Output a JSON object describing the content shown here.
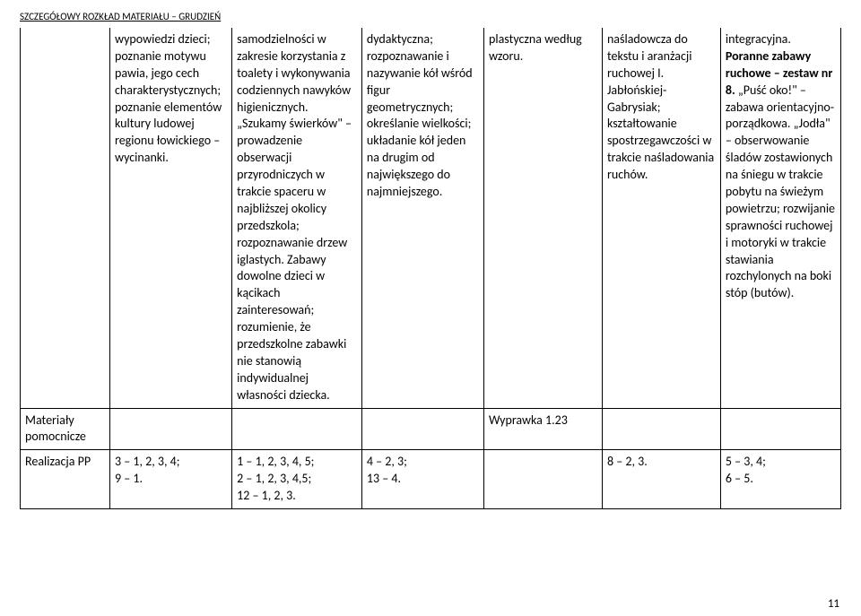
{
  "header": "SZCZEGÓŁOWY ROZKŁAD MATERIAŁU – GRUDZIEŃ",
  "row1": {
    "c0": "",
    "c1": "wypowiedzi dzieci; poznanie motywu pawia, jego cech charakterystycznych; poznanie elementów kultury ludowej regionu łowickiego – wycinanki.",
    "c2": "samodzielności w zakresie korzystania z toalety i wykonywania codziennych nawyków higienicznych. „Szukamy świerków\" – prowadzenie obserwacji przyrodniczych w trakcie spaceru w najbliższej okolicy przedszkola; rozpoznawanie drzew iglastych. Zabawy dowolne dzieci w kącikach zainteresowań; rozumienie, że przedszkolne zabawki nie stanowią indywidualnej własności dziecka.",
    "c3": "dydaktyczna; rozpoznawanie i nazywanie kół wśród figur geometrycznych; określanie wielkości; układanie kół jeden na drugim od największego do najmniejszego.",
    "c4": "plastyczna według wzoru.",
    "c5": "naśladowcza do tekstu i aranżacji ruchowej I. Jabłońskiej-Gabrysiak; kształtowanie spostrzegawczości w trakcie naśladowania ruchów.",
    "c6_prefix": "integracyjna.",
    "c6_bold": "Poranne zabawy ruchowe – zestaw nr 8.",
    "c6_rest": " „Puść oko!\" – zabawa orientacyjno-porządkowa. „Jodła\" – obserwowanie śladów zostawionych na śniegu w trakcie pobytu na świeżym powietrzu; rozwijanie sprawności ruchowej i motoryki w trakcie stawiania rozchylonych na boki stóp (butów)."
  },
  "row2": {
    "c0": "Materiały pomocnicze",
    "c1": "",
    "c2": "",
    "c3": "",
    "c4": "Wyprawka 1.23",
    "c5": "",
    "c6": ""
  },
  "row3": {
    "c0": "Realizacja PP",
    "c1": "3 – 1, 2, 3, 4;\n9 – 1.",
    "c2": "1 – 1, 2, 3, 4, 5;\n2 – 1, 2, 3,  4,5;\n12 – 1, 2, 3.",
    "c3": "4 – 2, 3;\n13 – 4.",
    "c4": "",
    "c5": "8 – 2, 3.",
    "c6": "5 – 3, 4;\n6 – 5."
  },
  "pageNumber": "11"
}
